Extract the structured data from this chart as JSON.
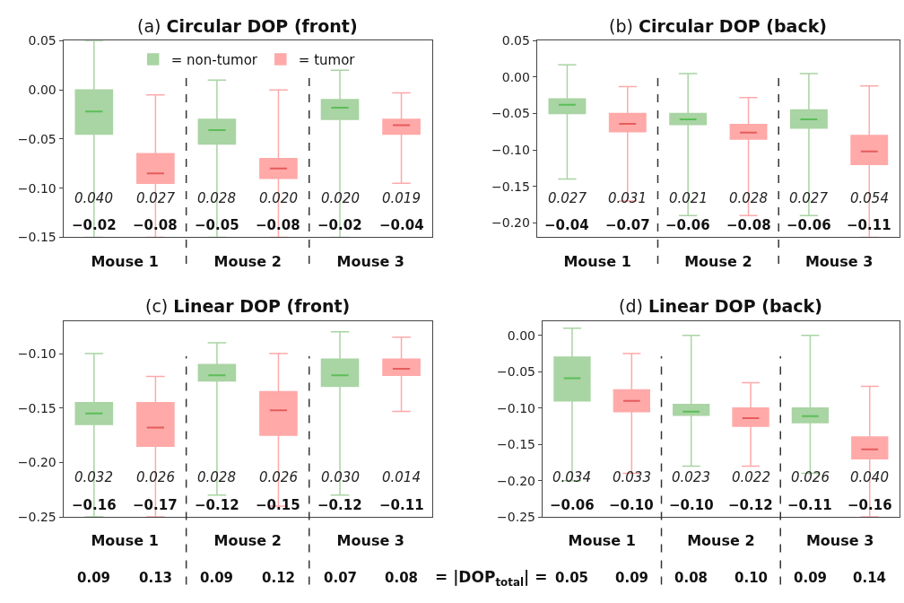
{
  "chart_data": [
    {
      "type": "box",
      "title": "(a) Circular DOP (front)",
      "categories": [
        "Mouse 1",
        "Mouse 2",
        "Mouse 3"
      ],
      "ylim": [
        -0.15,
        0.05
      ],
      "yticks": [
        {
          "value": -0.15,
          "label": "−0.15"
        },
        {
          "value": -0.1,
          "label": "−0.10"
        },
        {
          "value": -0.05,
          "label": "−0.05"
        },
        {
          "value": 0,
          "label": "0.00"
        },
        {
          "value": 0.05,
          "label": "0.05"
        }
      ],
      "legend": "top",
      "series": [
        {
          "name": "= non-tumor",
          "color": "#a9d4a3",
          "boxes": [
            {
              "low": -0.15,
              "q1": -0.045,
              "median": -0.022,
              "q3": 0.0,
              "high": 0.05
            },
            {
              "low": -0.15,
              "q1": -0.055,
              "median": -0.041,
              "q3": -0.03,
              "high": 0.01
            },
            {
              "low": -0.15,
              "q1": -0.03,
              "median": -0.018,
              "q3": -0.01,
              "high": 0.02
            }
          ]
        },
        {
          "name": "= tumor",
          "color": "#ffa9a9",
          "boxes": [
            {
              "low": -0.15,
              "q1": -0.095,
              "median": -0.085,
              "q3": -0.065,
              "high": -0.005
            },
            {
              "low": -0.15,
              "q1": -0.09,
              "median": -0.08,
              "q3": -0.07,
              "high": 0.0
            },
            {
              "low": -0.095,
              "q1": -0.045,
              "median": -0.036,
              "q3": -0.03,
              "high": -0.003
            }
          ]
        }
      ],
      "annotations": [
        "0.040",
        "0.027",
        "0.028",
        "0.020",
        "0.020",
        "0.019",
        "−0.02",
        "−0.08",
        "−0.05",
        "−0.08",
        "−0.02",
        "−0.04"
      ]
    },
    {
      "type": "box",
      "title": "(b) Circular DOP (back)",
      "categories": [
        "Mouse 1",
        "Mouse 2",
        "Mouse 3"
      ],
      "ylim": [
        -0.22,
        0.05
      ],
      "yticks": [
        {
          "value": -0.2,
          "label": "−0.20"
        },
        {
          "value": -0.15,
          "label": "−0.15"
        },
        {
          "value": -0.1,
          "label": "−0.10"
        },
        {
          "value": -0.05,
          "label": "−0.05"
        },
        {
          "value": 0,
          "label": "0.00"
        },
        {
          "value": 0.05,
          "label": "0.05"
        }
      ],
      "series": [
        {
          "color": "#a9d4a3",
          "boxes": [
            {
              "low": -0.14,
              "q1": -0.05,
              "median": -0.038,
              "q3": -0.03,
              "high": 0.017
            },
            {
              "low": -0.19,
              "q1": -0.065,
              "median": -0.058,
              "q3": -0.05,
              "high": 0.005
            },
            {
              "low": -0.19,
              "q1": -0.07,
              "median": -0.058,
              "q3": -0.045,
              "high": 0.005
            }
          ]
        },
        {
          "color": "#ffa9a9",
          "boxes": [
            {
              "low": -0.17,
              "q1": -0.075,
              "median": -0.064,
              "q3": -0.05,
              "high": -0.013
            },
            {
              "low": -0.19,
              "q1": -0.085,
              "median": -0.076,
              "q3": -0.065,
              "high": -0.028
            },
            {
              "low": -0.22,
              "q1": -0.12,
              "median": -0.102,
              "q3": -0.08,
              "high": -0.012
            }
          ]
        }
      ],
      "annotations": [
        "0.027",
        "0.031",
        "0.021",
        "0.028",
        "0.027",
        "0.054",
        "−0.04",
        "−0.07",
        "−0.06",
        "−0.08",
        "−0.06",
        "−0.11"
      ]
    },
    {
      "type": "box",
      "title": "(c) Linear DOP (front)",
      "categories": [
        "Mouse 1",
        "Mouse 2",
        "Mouse 3"
      ],
      "ylim": [
        -0.25,
        -0.07
      ],
      "yticks": [
        {
          "value": -0.25,
          "label": "−0.25"
        },
        {
          "value": -0.2,
          "label": "−0.20"
        },
        {
          "value": -0.15,
          "label": "−0.15"
        },
        {
          "value": -0.1,
          "label": "−0.10"
        }
      ],
      "series": [
        {
          "color": "#a9d4a3",
          "boxes": [
            {
              "low": -0.25,
              "q1": -0.165,
              "median": -0.155,
              "q3": -0.145,
              "high": -0.1
            },
            {
              "low": -0.23,
              "q1": -0.125,
              "median": -0.12,
              "q3": -0.11,
              "high": -0.09
            },
            {
              "low": -0.23,
              "q1": -0.13,
              "median": -0.12,
              "q3": -0.105,
              "high": -0.08
            }
          ]
        },
        {
          "color": "#ffa9a9",
          "boxes": [
            {
              "low": -0.25,
              "q1": -0.185,
              "median": -0.168,
              "q3": -0.145,
              "high": -0.121
            },
            {
              "low": -0.24,
              "q1": -0.175,
              "median": -0.152,
              "q3": -0.135,
              "high": -0.1
            },
            {
              "low": -0.153,
              "q1": -0.12,
              "median": -0.114,
              "q3": -0.105,
              "high": -0.085
            }
          ]
        }
      ],
      "annotations": [
        "0.032",
        "0.026",
        "0.028",
        "0.026",
        "0.030",
        "0.014",
        "−0.16",
        "−0.17",
        "−0.12",
        "−0.15",
        "−0.12",
        "−0.11",
        "0.09",
        "0.13",
        "0.09",
        "0.12",
        "0.07",
        "0.08",
        "= |DOP$_{total}$| ="
      ]
    },
    {
      "type": "box",
      "title": "(d) Linear DOP (back)",
      "categories": [
        "Mouse 1",
        "Mouse 2",
        "Mouse 3"
      ],
      "ylim": [
        -0.25,
        0.02
      ],
      "yticks": [
        {
          "value": -0.25,
          "label": "−0.25"
        },
        {
          "value": -0.2,
          "label": "−0.20"
        },
        {
          "value": -0.15,
          "label": "−0.15"
        },
        {
          "value": -0.1,
          "label": "−0.10"
        },
        {
          "value": -0.05,
          "label": "−0.05"
        },
        {
          "value": 0,
          "label": "0.00"
        }
      ],
      "series": [
        {
          "color": "#a9d4a3",
          "boxes": [
            {
              "low": -0.2,
              "q1": -0.09,
              "median": -0.059,
              "q3": -0.03,
              "high": 0.01
            },
            {
              "low": -0.18,
              "q1": -0.11,
              "median": -0.105,
              "q3": -0.095,
              "high": 0.0
            },
            {
              "low": -0.19,
              "q1": -0.12,
              "median": -0.111,
              "q3": -0.1,
              "high": 0.0
            }
          ]
        },
        {
          "color": "#ffa9a9",
          "boxes": [
            {
              "low": -0.19,
              "q1": -0.105,
              "median": -0.09,
              "q3": -0.075,
              "high": -0.025
            },
            {
              "low": -0.18,
              "q1": -0.125,
              "median": -0.114,
              "q3": -0.1,
              "high": -0.065
            },
            {
              "low": -0.25,
              "q1": -0.17,
              "median": -0.157,
              "q3": -0.14,
              "high": -0.07
            }
          ]
        }
      ],
      "annotations": [
        "0.034",
        "0.033",
        "0.023",
        "0.022",
        "0.026",
        "0.040",
        "−0.06",
        "−0.10",
        "−0.10",
        "−0.12",
        "−0.11",
        "−0.16",
        "0.05",
        "0.09",
        "0.08",
        "0.10",
        "0.09",
        "0.14"
      ]
    }
  ]
}
